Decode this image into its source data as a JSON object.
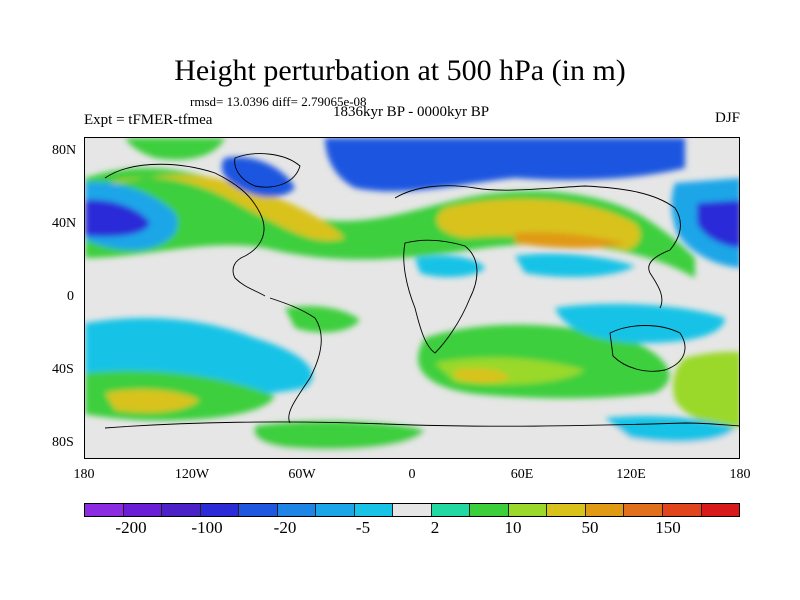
{
  "title": "Height perturbation at 500 hPa (in m)",
  "stats": "rmsd= 13.0396 diff= 2.79065e-08",
  "subtitle": "1836kyr BP - 0000kyr BP",
  "experiment": "Expt = tFMER-tfmea",
  "season": "DJF",
  "map": {
    "lat_labels": [
      "80N",
      "40N",
      "0",
      "40S",
      "80S"
    ],
    "lon_labels": [
      "180",
      "120W",
      "60W",
      "0",
      "60E",
      "120E",
      "180"
    ]
  },
  "colorbar": {
    "colors": [
      "#8b2be2",
      "#6a1fd6",
      "#4a22c8",
      "#2b2cd8",
      "#1f57e0",
      "#1e84e6",
      "#1aa6e8",
      "#19c3e6",
      "#e6e6e6",
      "#22d9a3",
      "#3ccf3c",
      "#9ad92a",
      "#d9c21a",
      "#e09a14",
      "#e0701a",
      "#e0451e",
      "#d91a1a"
    ],
    "labels": [
      "-200",
      "-100",
      "-20",
      "-5",
      "2",
      "10",
      "50",
      "150"
    ]
  },
  "field_colors": {
    "dark_blue": "#2b2cd8",
    "blue": "#1f57e0",
    "light_blue": "#1aa6e8",
    "cyan": "#19c3e6",
    "neutral": "#e6e6e6",
    "teal": "#22d9a3",
    "green": "#3ccf3c",
    "yellow_green": "#9ad92a",
    "yellow": "#d9c21a",
    "orange": "#e09a14",
    "coast": "#000000"
  }
}
